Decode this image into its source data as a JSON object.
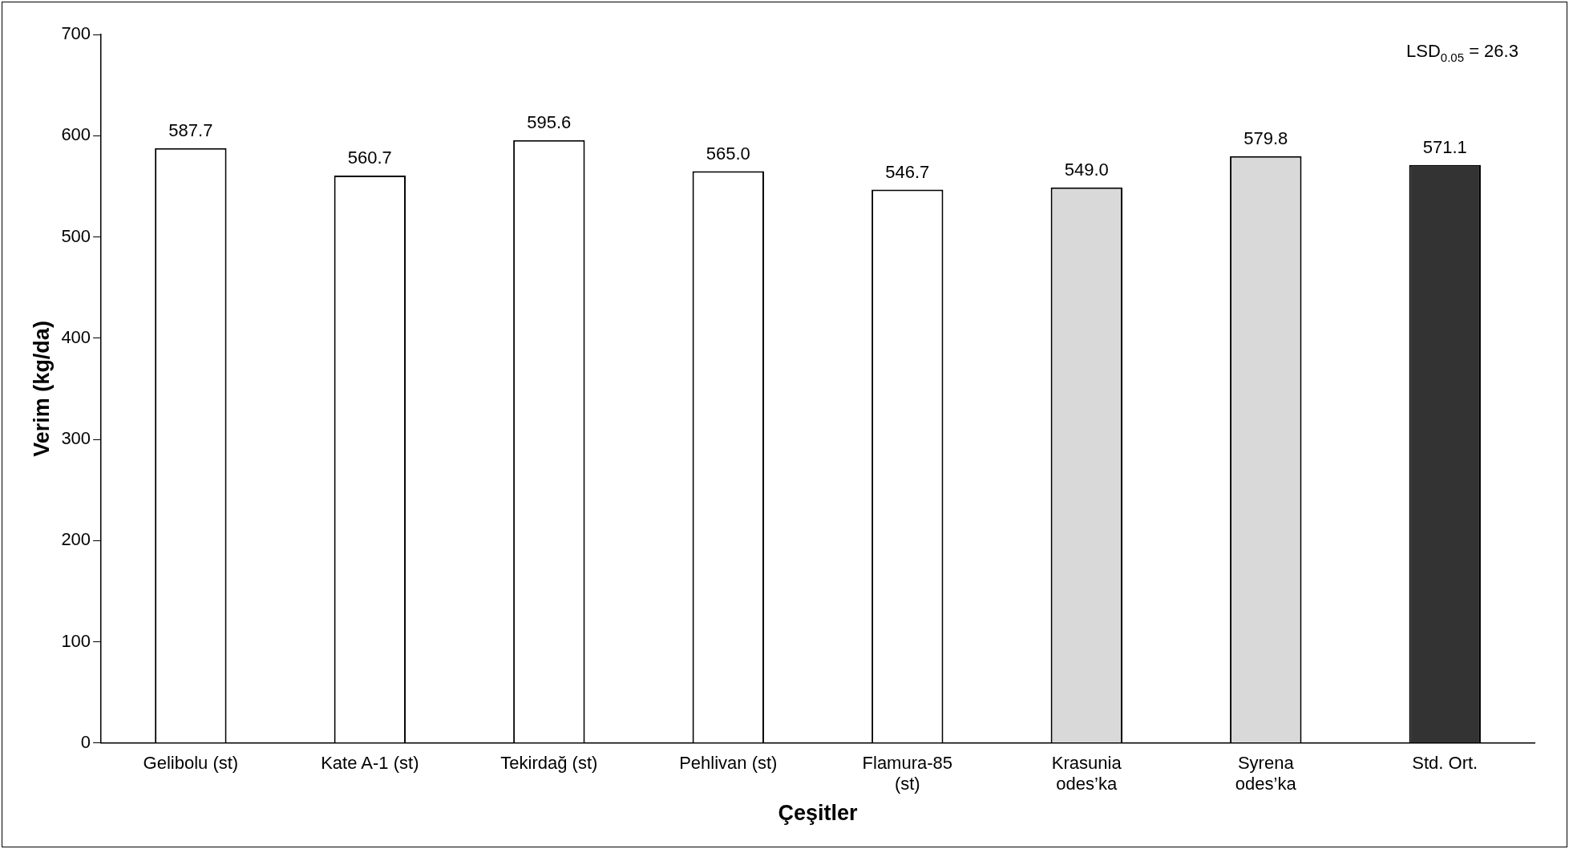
{
  "chart_data": {
    "type": "bar",
    "xlabel": "Çeşitler",
    "ylabel": "Verim (kg/da)",
    "categories": [
      "Gelibolu (st)",
      "Kate A-1 (st)",
      "Tekirdağ (st)",
      "Pehlivan (st)",
      "Flamura-85 (st)",
      "Krasunia odes’ka",
      "Syrena odes’ka",
      "Std. Ort."
    ],
    "values": [
      587.7,
      560.7,
      595.6,
      565.0,
      546.7,
      549.0,
      579.8,
      571.1
    ],
    "value_labels": [
      "587.7",
      "560.7",
      "595.6",
      "565.0",
      "546.7",
      "549.0",
      "579.8",
      "571.1"
    ],
    "colors": [
      "#ffffff",
      "#ffffff",
      "#ffffff",
      "#ffffff",
      "#ffffff",
      "#d9d9d9",
      "#d9d9d9",
      "#333333"
    ],
    "ylim": [
      0,
      700
    ],
    "yticks": [
      0,
      100,
      200,
      300,
      400,
      500,
      600,
      700
    ],
    "grid": false,
    "legend": false,
    "annotations": [
      "LSD$_{0.05}$ = 26.3"
    ]
  }
}
